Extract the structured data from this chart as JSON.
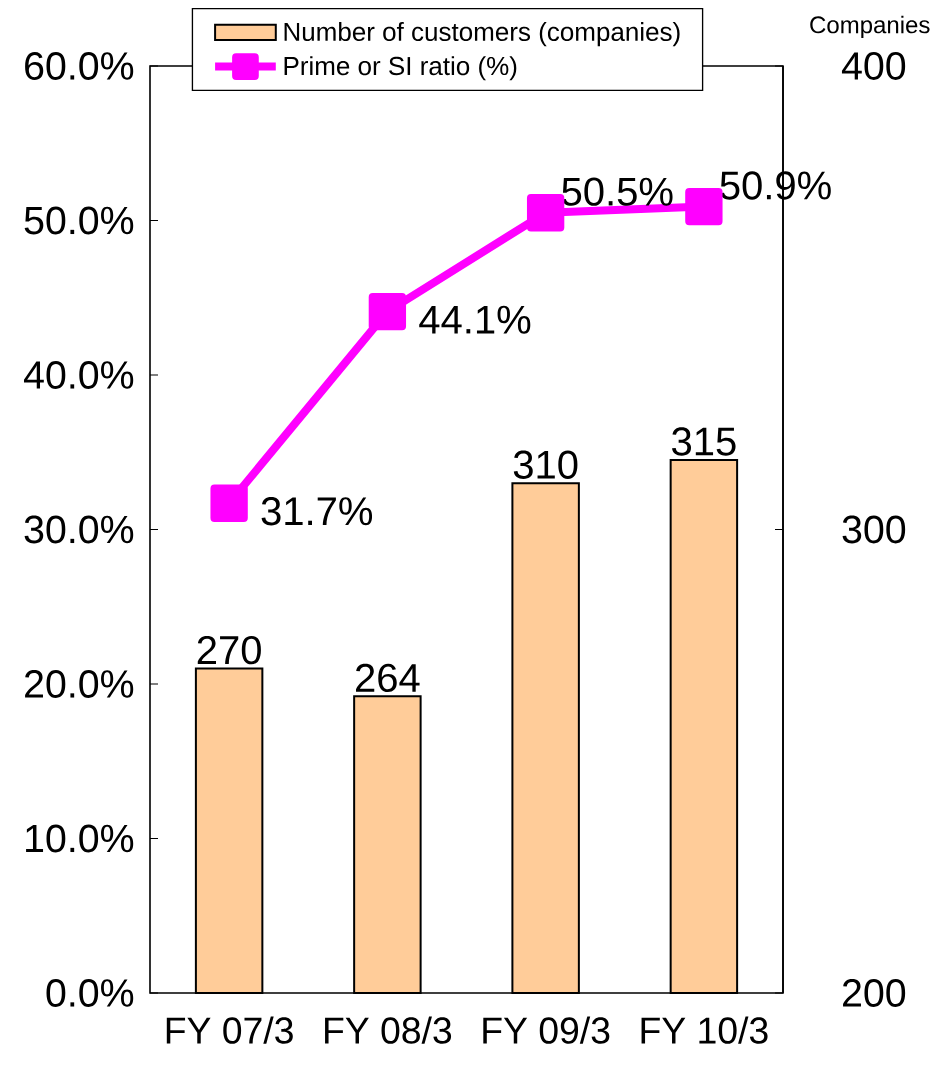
{
  "chart_data": {
    "type": "bar",
    "categories": [
      "FY 07/3",
      "FY 08/3",
      "FY 09/3",
      "FY 10/3"
    ],
    "series": [
      {
        "name": "Number of customers (companies)",
        "axis": "y2",
        "color": "#ffcc99",
        "values": [
          270,
          264,
          310,
          315
        ],
        "value_labels": [
          "270",
          "264",
          "310",
          "315"
        ]
      },
      {
        "name": "Prime or SI ratio (%)",
        "type": "line",
        "axis": "y",
        "color": "#ff00ff",
        "marker": "square",
        "values": [
          31.7,
          44.1,
          50.5,
          50.9
        ],
        "value_labels": [
          "31.7%",
          "44.1%",
          "50.5%",
          "50.9%"
        ]
      }
    ],
    "y2label": "Companies",
    "ylim": [
      0,
      60
    ],
    "yticks": [
      {
        "value": 0,
        "label": "0.0%"
      },
      {
        "value": 10,
        "label": "10.0%"
      },
      {
        "value": 20,
        "label": "20.0%"
      },
      {
        "value": 30,
        "label": "30.0%"
      },
      {
        "value": 40,
        "label": "40.0%"
      },
      {
        "value": 50,
        "label": "50.0%"
      },
      {
        "value": 60,
        "label": "60.0%"
      }
    ],
    "y2lim": [
      200,
      400
    ],
    "y2ticks": [
      200,
      300,
      400
    ],
    "legend": "top",
    "grid": false
  }
}
